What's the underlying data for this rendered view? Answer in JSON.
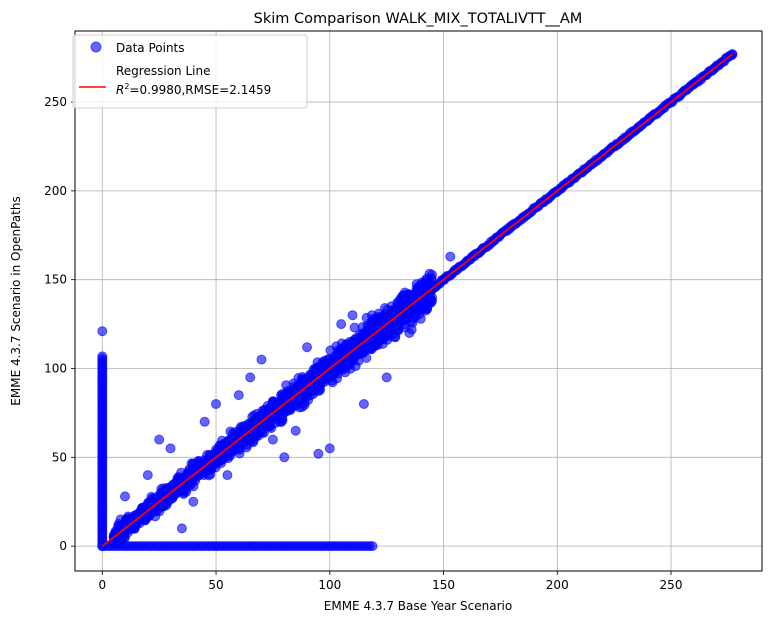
{
  "chart_data": {
    "type": "scatter",
    "title": "Skim Comparison WALK_MIX_TOTALIVTT__AM",
    "xlabel": "EMME 4.3.7 Base Year Scenario",
    "ylabel": "EMME 4.3.7 Scenario in OpenPaths",
    "xlim": [
      -12,
      290
    ],
    "ylim": [
      -14,
      290
    ],
    "xticks": [
      0,
      50,
      100,
      150,
      200,
      250
    ],
    "yticks": [
      0,
      50,
      100,
      150,
      200,
      250
    ],
    "grid": true,
    "legend": {
      "placement": "top-left",
      "entries": [
        {
          "label": "Data Points",
          "marker": "circle",
          "color": "#0000ff"
        },
        {
          "label": "Regression Line",
          "label2_prefix": "R",
          "label2_sup": "2",
          "label2_rest": "=0.9980,RMSE=2.1459",
          "marker": "line",
          "color": "#ff0000"
        }
      ]
    },
    "series": [
      {
        "name": "Data Points",
        "color": "#0000ff",
        "opacity": 0.6,
        "clusters": [
          {
            "kind": "vertical_band",
            "x": 0,
            "y_range": [
              0,
              108
            ]
          },
          {
            "kind": "outlier",
            "x": 0,
            "y": 121
          },
          {
            "kind": "horizontal_band",
            "y": 0,
            "x_range": [
              0,
              120
            ]
          },
          {
            "kind": "diagonal_spread",
            "x_range": [
              5,
              145
            ],
            "spread": 12
          },
          {
            "kind": "diagonal_tight",
            "x_range": [
              145,
              277
            ]
          }
        ],
        "points": [
          [
            10,
            28
          ],
          [
            8,
            15
          ],
          [
            20,
            40
          ],
          [
            25,
            60
          ],
          [
            30,
            55
          ],
          [
            35,
            10
          ],
          [
            40,
            25
          ],
          [
            45,
            70
          ],
          [
            50,
            80
          ],
          [
            55,
            40
          ],
          [
            60,
            85
          ],
          [
            65,
            95
          ],
          [
            70,
            105
          ],
          [
            75,
            60
          ],
          [
            80,
            50
          ],
          [
            85,
            65
          ],
          [
            90,
            112
          ],
          [
            95,
            52
          ],
          [
            100,
            55
          ],
          [
            105,
            125
          ],
          [
            110,
            130
          ],
          [
            115,
            80
          ],
          [
            120,
            122
          ],
          [
            125,
            95
          ],
          [
            130,
            135
          ],
          [
            135,
            120
          ],
          [
            140,
            128
          ],
          [
            145,
            140
          ],
          [
            150,
            150
          ],
          [
            153,
            163
          ],
          [
            160,
            160
          ],
          [
            180,
            180
          ],
          [
            200,
            200
          ],
          [
            220,
            220
          ],
          [
            240,
            240
          ],
          [
            260,
            260
          ],
          [
            277,
            277
          ]
        ]
      },
      {
        "name": "Regression Line",
        "color": "#ff0000",
        "type": "line",
        "x": [
          0,
          277
        ],
        "y": [
          0,
          277
        ]
      }
    ]
  }
}
